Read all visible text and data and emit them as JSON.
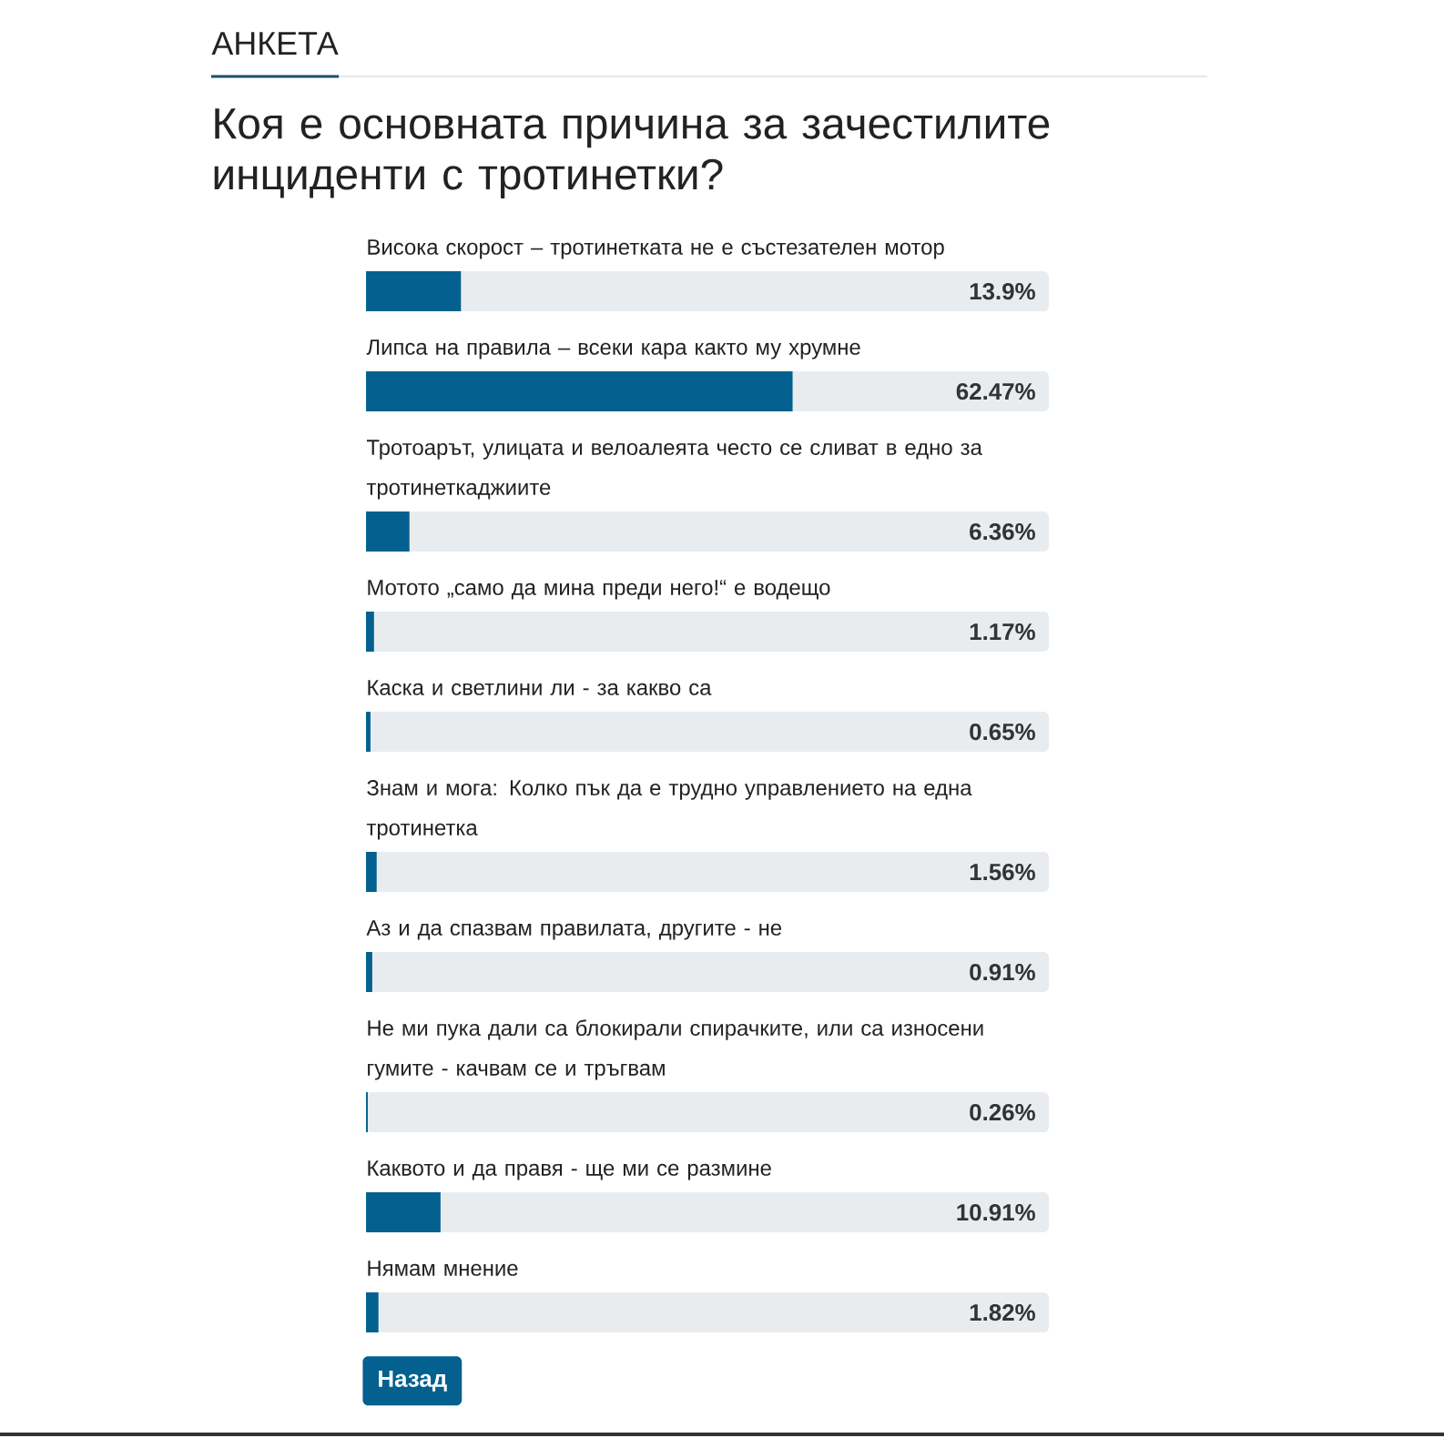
{
  "chart_data": {
    "type": "bar",
    "orientation": "horizontal",
    "subtitle": "АНКЕТА",
    "title": "Коя е основната причина за зачестилите инциденти с тротинетки?",
    "categories": [
      "Висока скорост – тротинетката не е състезателен мотор",
      "Липса на правила – всеки кара както му хрумне",
      "Тротоарът, улицата и велоалеята често се сливат в едно за тротинеткаджиите",
      "Мотото „само да мина преди него!“ е водещо",
      "Каска и светлини ли - за какво са",
      "Знам и мога: Колко пък да е трудно управлението на една тротинетка",
      "Аз и да спазвам правилата, другите - не",
      "Не ми пука дали са блокирали спирачките, или са износени гумите - качвам се и тръгвам",
      "Каквото и да правя - ще ми се размине",
      "Нямам мнение"
    ],
    "values": [
      13.9,
      62.47,
      6.36,
      1.17,
      0.65,
      1.56,
      0.91,
      0.26,
      10.91,
      1.82
    ],
    "value_labels": [
      "13.9%",
      "62.47%",
      "6.36%",
      "1.17%",
      "0.65%",
      "1.56%",
      "0.91%",
      "0.26%",
      "10.91%",
      "1.82%"
    ],
    "color": "#03608f",
    "xlim": [
      0,
      100
    ],
    "tick_labels": "y",
    "annotations": [
      "Назад"
    ]
  }
}
